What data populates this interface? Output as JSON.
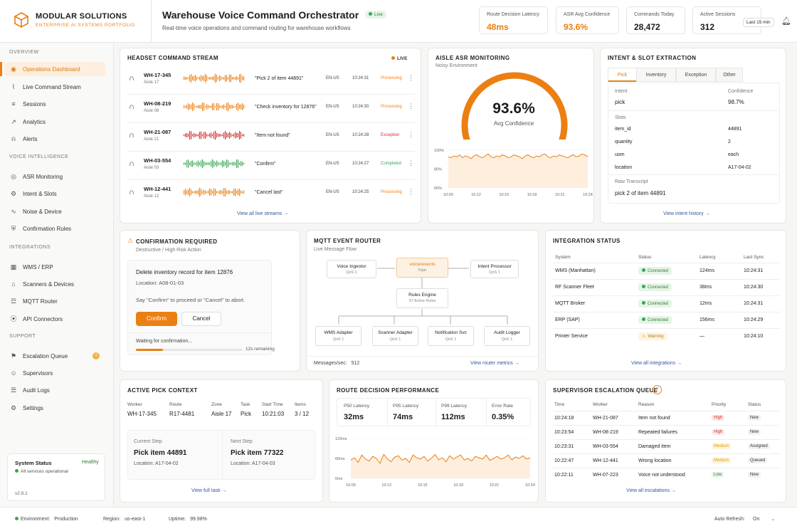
{
  "brand": {
    "name": "MODULAR SOLUTIONS",
    "tag": "ENTERPRISE AI SYSTEMS PORTFOLIO"
  },
  "header": {
    "title": "Warehouse Voice Command Orchestrator",
    "live": "Live",
    "subtitle": "Real-time voice operations and command routing for warehouse workflows",
    "range": "Last 15 min"
  },
  "metrics": [
    {
      "label": "Route Decision Latency",
      "value": "48ms",
      "accent": true
    },
    {
      "label": "ASR Avg Confidence",
      "value": "93.6%",
      "accent": true
    },
    {
      "label": "Commands Today",
      "value": "28,472",
      "accent": false
    },
    {
      "label": "Active Sessions",
      "value": "312",
      "accent": false
    }
  ],
  "sidebar": {
    "sections": [
      "OVERVIEW",
      "VOICE INTELLIGENCE",
      "INTEGRATIONS",
      "SUPPORT"
    ],
    "items": [
      {
        "label": "Operations Dashboard",
        "icon": "dashboard-icon"
      },
      {
        "label": "Live Command Stream",
        "icon": "stream-icon"
      },
      {
        "label": "Sessions",
        "icon": "sessions-icon"
      },
      {
        "label": "Analytics",
        "icon": "analytics-icon"
      },
      {
        "label": "Alerts",
        "icon": "bell-icon"
      },
      {
        "label": "ASR Monitoring",
        "icon": "asr-icon"
      },
      {
        "label": "Intent & Slots",
        "icon": "intent-icon"
      },
      {
        "label": "Noise & Device",
        "icon": "noise-icon"
      },
      {
        "label": "Confirmation Rules",
        "icon": "shield-icon"
      },
      {
        "label": "WMS / ERP",
        "icon": "grid-icon"
      },
      {
        "label": "Scanners & Devices",
        "icon": "scanner-icon"
      },
      {
        "label": "MQTT Router",
        "icon": "router-icon"
      },
      {
        "label": "API Connectors",
        "icon": "plug-icon"
      },
      {
        "label": "Escalation Queue",
        "icon": "escalation-icon",
        "badge": "?"
      },
      {
        "label": "Supervisors",
        "icon": "users-icon"
      },
      {
        "label": "Audit Logs",
        "icon": "log-icon"
      },
      {
        "label": "Settings",
        "icon": "gear-icon"
      }
    ],
    "status": {
      "title": "System Status",
      "state": "Healthy",
      "detail": "All services operational",
      "version": "v2.8.1"
    }
  },
  "headset": {
    "title": "HEADSET COMMAND STREAM",
    "live": "LIVE",
    "view_all": "View all live streams →",
    "rows": [
      {
        "id": "WH-17-345",
        "aisle": "Aisle 17",
        "cmd": "\"Pick 2 of item 44891\"",
        "lang": "EN-US",
        "time": "10:24:31",
        "status": "Processing",
        "color": "#ec7f12"
      },
      {
        "id": "WH-08-219",
        "aisle": "Aisle 08",
        "cmd": "\"Check inventory for 12876\"",
        "lang": "EN-US",
        "time": "10:24:30",
        "status": "Processing",
        "color": "#ec7f12"
      },
      {
        "id": "WH-21-087",
        "aisle": "Aisle 21",
        "cmd": "\"Item not found\"",
        "lang": "EN-US",
        "time": "10:24:28",
        "status": "Exception",
        "color": "#d32f2f"
      },
      {
        "id": "WH-03-554",
        "aisle": "Aisle 03",
        "cmd": "\"Confirm\"",
        "lang": "EN-US",
        "time": "10:24:27",
        "status": "Completed",
        "color": "#3aa655"
      },
      {
        "id": "WH-12-441",
        "aisle": "Aisle 12",
        "cmd": "\"Cancel last\"",
        "lang": "EN-US",
        "time": "10:24:25",
        "status": "Processing",
        "color": "#ec7f12"
      }
    ]
  },
  "asr": {
    "title": "AISLE ASR MONITORING",
    "subtitle": "Noisy Environment",
    "value": "93.6%",
    "label": "Avg Confidence",
    "gauge_fraction": 0.936,
    "chart_data": {
      "type": "line",
      "y_ticks": [
        "100%",
        "80%",
        "60%"
      ],
      "x_ticks": [
        "10:09",
        "10:12",
        "10:15",
        "10:18",
        "10:21",
        "10:24"
      ],
      "ylim": [
        60,
        100
      ],
      "values": [
        93,
        92,
        94,
        93,
        95,
        92,
        94,
        93,
        91,
        94,
        95,
        93,
        92,
        94,
        96,
        93,
        92,
        94,
        93,
        95,
        94,
        92,
        93,
        95,
        94,
        93,
        91,
        94,
        95,
        93,
        92,
        94,
        93,
        95,
        96,
        93,
        92,
        94,
        93,
        95,
        94,
        93,
        92,
        94,
        95,
        93,
        94,
        96,
        95,
        93
      ]
    }
  },
  "intent": {
    "title": "INTENT & SLOT EXTRACTION",
    "tabs": [
      "Pick",
      "Inventory",
      "Exception",
      "Other"
    ],
    "intent_label": "Intent",
    "intent": "pick",
    "conf_label": "Confidence",
    "conf": "98.7%",
    "slots_label": "Slots",
    "slots": [
      {
        "k": "item_id",
        "v": "44891"
      },
      {
        "k": "quantity",
        "v": "2"
      },
      {
        "k": "uom",
        "v": "each"
      },
      {
        "k": "location",
        "v": "A17-04-02"
      }
    ],
    "raw_label": "Raw Transcript",
    "raw": "pick 2 of item 44891",
    "view": "View intent history →"
  },
  "confirm": {
    "title": "CONFIRMATION REQUIRED",
    "subtitle": "Destructive / High Risk Action",
    "action": "Delete inventory record for item 12876",
    "location": "Location: A08-01-03",
    "prompt": "Say \"Confirm\" to proceed or \"Cancel\" to abort.",
    "confirm": "Confirm",
    "cancel": "Cancel",
    "waiting": "Waiting for confirmation...",
    "remaining": "12s remaining",
    "progress": 0.25
  },
  "mqtt": {
    "title": "MQTT EVENT ROUTER",
    "subtitle": "Live Message Flow",
    "ingestor": "Voice Ingestor",
    "ingestor_q": "QoS 1",
    "topic": "voice/events",
    "topic_l": "Topic",
    "processor": "Intent Processor",
    "processor_q": "QoS 1",
    "engine": "Rules Engine",
    "engine_s": "37 Active Rules",
    "adapters": [
      {
        "n": "WMS Adapter",
        "q": "QoS 1"
      },
      {
        "n": "Scanner Adapter",
        "q": "QoS 1"
      },
      {
        "n": "Notification Svc",
        "q": "QoS 1"
      },
      {
        "n": "Audit Logger",
        "q": "QoS 1"
      }
    ],
    "rate_label": "Messages/sec:",
    "rate": "512",
    "view": "View router metrics →"
  },
  "integration": {
    "title": "INTEGRATION STATUS",
    "cols": [
      "System",
      "Status",
      "Latency",
      "Last Sync"
    ],
    "rows": [
      {
        "s": "WMS (Manhattan)",
        "st": "Connected",
        "l": "124ms",
        "t": "10:24:31",
        "ok": true
      },
      {
        "s": "RF Scanner Fleet",
        "st": "Connected",
        "l": "38ms",
        "t": "10:24:30",
        "ok": true
      },
      {
        "s": "MQTT Broker",
        "st": "Connected",
        "l": "12ms",
        "t": "10:24:31",
        "ok": true
      },
      {
        "s": "ERP (SAP)",
        "st": "Connected",
        "l": "156ms",
        "t": "10:24:29",
        "ok": true
      },
      {
        "s": "Printer Service",
        "st": "Warning",
        "l": "—",
        "t": "10:24:10",
        "ok": false
      }
    ],
    "view": "View all integrations →"
  },
  "pick": {
    "title": "ACTIVE PICK CONTEXT",
    "cols": [
      "Worker",
      "Route",
      "Zone",
      "Task",
      "Start Time",
      "Items"
    ],
    "vals": [
      "WH-17-345",
      "R17-4481",
      "Aisle 17",
      "Pick",
      "10:21:03",
      "3 / 12"
    ],
    "cur_l": "Current Step",
    "cur": "Pick item 44891",
    "cur_loc": "Location: A17-04-02",
    "next_l": "Next Step",
    "next": "Pick item 77322",
    "next_loc": "Location: A17-04-03",
    "view": "View full task →"
  },
  "route": {
    "title": "ROUTE DECISION PERFORMANCE",
    "stats": [
      {
        "l": "P50 Latency",
        "v": "32ms"
      },
      {
        "l": "P95 Latency",
        "v": "74ms"
      },
      {
        "l": "P99 Latency",
        "v": "112ms"
      },
      {
        "l": "Error Rate",
        "v": "0.35%"
      }
    ],
    "chart_data": {
      "type": "line",
      "y_ticks": [
        "120ms",
        "60ms",
        "0ms"
      ],
      "x_ticks": [
        "10:09",
        "10:12",
        "10:15",
        "10:18",
        "10:21",
        "10:24"
      ],
      "ylim": [
        0,
        120
      ],
      "values": [
        55,
        62,
        48,
        70,
        58,
        52,
        66,
        60,
        45,
        72,
        58,
        50,
        64,
        68,
        55,
        60,
        48,
        70,
        62,
        58,
        66,
        52,
        60,
        72,
        56,
        62,
        50,
        68,
        58,
        64,
        70,
        55,
        60,
        52,
        66,
        62,
        58,
        70,
        54,
        60,
        66,
        58,
        62,
        70,
        56,
        64,
        60,
        68,
        58,
        62
      ]
    }
  },
  "esc": {
    "title": "SUPERVISOR ESCALATION QUEUE",
    "count": "7",
    "cols": [
      "Time",
      "Worker",
      "Reason",
      "Priority",
      "Status"
    ],
    "rows": [
      {
        "t": "10:24:18",
        "w": "WH-21-087",
        "r": "Item not found",
        "p": "High",
        "s": "New"
      },
      {
        "t": "10:23:54",
        "w": "WH-08-219",
        "r": "Repeated failures",
        "p": "High",
        "s": "New"
      },
      {
        "t": "10:23:31",
        "w": "WH-03-554",
        "r": "Damaged item",
        "p": "Medium",
        "s": "Assigned"
      },
      {
        "t": "10:22:47",
        "w": "WH-12-441",
        "r": "Wrong location",
        "p": "Medium",
        "s": "Queued"
      },
      {
        "t": "10:22:11",
        "w": "WH-07-223",
        "r": "Voice not understood",
        "p": "Low",
        "s": "New"
      }
    ],
    "view": "View all escalations →"
  },
  "footer": {
    "env_l": "Environment:",
    "env": "Production",
    "region_l": "Region:",
    "region": "us-east-1",
    "up_l": "Uptime:",
    "up": "99.98%",
    "auto_l": "Auto Refresh:",
    "auto": "On"
  }
}
